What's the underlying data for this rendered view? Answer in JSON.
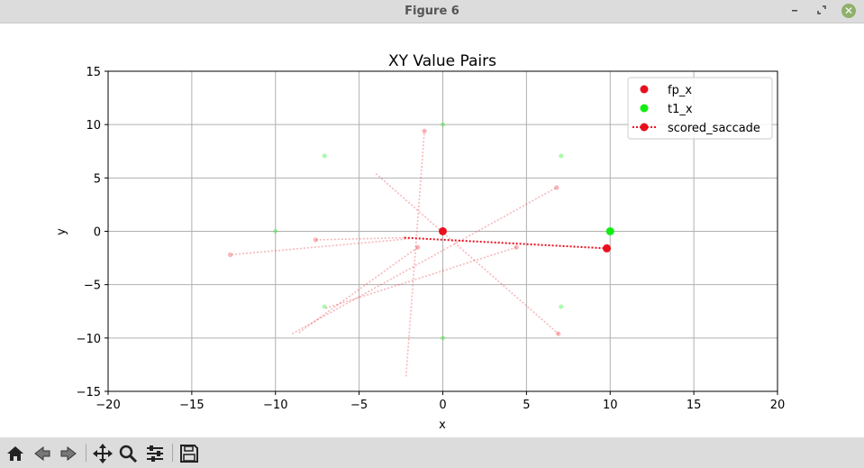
{
  "window": {
    "title": "Figure 6"
  },
  "colors": {
    "fp": "#e8101e",
    "t1": "#10ee10",
    "grid": "#b0b0b0",
    "axis": "#000000",
    "toolbar_icon": "#222222"
  },
  "toolbar": {
    "icons": [
      "home-icon",
      "back-arrow-icon",
      "forward-arrow-icon",
      "pan-icon",
      "zoom-icon",
      "configure-subplots-icon",
      "save-icon"
    ]
  },
  "chart_data": {
    "type": "scatter",
    "title": "XY Value Pairs",
    "xlabel": "x",
    "ylabel": "y",
    "xlim": [
      -20,
      20
    ],
    "ylim": [
      -15,
      15
    ],
    "xticks": [
      -20,
      -15,
      -10,
      -5,
      0,
      5,
      10,
      15,
      20
    ],
    "yticks": [
      -15,
      -10,
      -5,
      0,
      5,
      10,
      15
    ],
    "grid": true,
    "legend_position": "top-right",
    "legend": [
      {
        "label": "fp_x",
        "marker": "dot",
        "color": "#e8101e"
      },
      {
        "label": "t1_x",
        "marker": "dot",
        "color": "#10ee10"
      },
      {
        "label": "scored_saccade",
        "marker": "dotted-line-dot",
        "color": "#e8101e"
      }
    ],
    "series": [
      {
        "name": "fp_x",
        "points": [
          {
            "x": 0,
            "y": 0
          }
        ]
      },
      {
        "name": "t1_x",
        "points": [
          {
            "x": 10,
            "y": 0
          }
        ]
      },
      {
        "name": "scored_saccade",
        "segments": [
          {
            "x1": -2.3,
            "y1": -0.6,
            "x2": 9.8,
            "y2": -1.6
          }
        ]
      }
    ],
    "faded_t1_points": [
      {
        "x": 0,
        "y": 10
      },
      {
        "x": -7.07,
        "y": 7.07
      },
      {
        "x": 7.07,
        "y": 7.07
      },
      {
        "x": -10,
        "y": 0
      },
      {
        "x": -7.07,
        "y": -7.07
      },
      {
        "x": 7.07,
        "y": -7.07
      },
      {
        "x": 0,
        "y": -10
      }
    ],
    "faded_saccades": [
      {
        "x1": -2.0,
        "y1": -0.7,
        "x2": -12.7,
        "y2": -2.2
      },
      {
        "x1": -2.3,
        "y1": -0.6,
        "x2": -7.6,
        "y2": -0.8
      },
      {
        "x1": -2.2,
        "y1": -13.6,
        "x2": -1.1,
        "y2": 9.4
      },
      {
        "x1": -4.0,
        "y1": 5.4,
        "x2": 6.9,
        "y2": -9.6
      },
      {
        "x1": -9.0,
        "y1": -9.6,
        "x2": 6.8,
        "y2": 4.1
      },
      {
        "x1": -8.6,
        "y1": -9.5,
        "x2": -1.5,
        "y2": -1.5
      },
      {
        "x1": -7.0,
        "y1": -7.2,
        "x2": 4.4,
        "y2": -1.5
      }
    ]
  }
}
